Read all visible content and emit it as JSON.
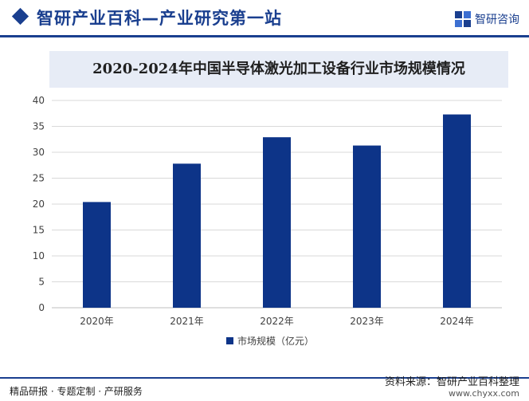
{
  "header": {
    "title": "智研产业百科—产业研究第一站",
    "logo_text": "智研咨询"
  },
  "chart_data": {
    "type": "bar",
    "title": "2020-2024年中国半导体激光加工设备行业市场规模情况",
    "categories": [
      "2020年",
      "2021年",
      "2022年",
      "2023年",
      "2024年"
    ],
    "series": [
      {
        "name": "市场规模（亿元）",
        "values": [
          20.4,
          27.8,
          32.9,
          31.3,
          37.3
        ],
        "color": "#0d3488"
      }
    ],
    "ylim": [
      0,
      40
    ],
    "yticks": [
      0,
      5,
      10,
      15,
      20,
      25,
      30,
      35,
      40
    ],
    "grid": true,
    "legend": "bottom-center"
  },
  "footer": {
    "left": "精品研报 · 专题定制 · 产研服务",
    "source": "资料来源：智研产业百科整理",
    "url": "www.chyxx.com"
  },
  "colors": {
    "brand": "#1a3f8f",
    "bar": "#0d3488",
    "grid": "#d9d9d9"
  }
}
